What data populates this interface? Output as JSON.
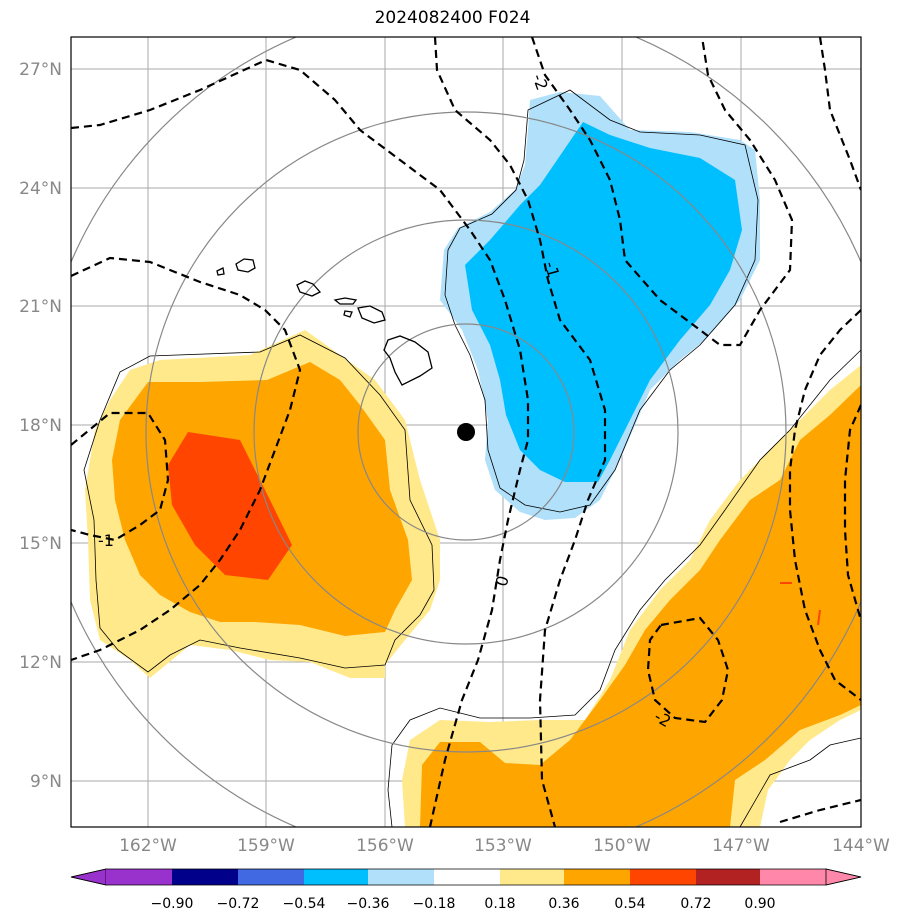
{
  "title": "2024082400 F024",
  "map": {
    "lat_ticks": [
      "27°N",
      "24°N",
      "21°N",
      "18°N",
      "15°N",
      "12°N",
      "9°N"
    ],
    "lon_ticks": [
      "162°W",
      "159°W",
      "156°W",
      "153°W",
      "150°W",
      "147°W",
      "144°W"
    ],
    "contour_labels": [
      "-2",
      "-1",
      "0",
      "-1",
      "-2"
    ],
    "colors": {
      "neg_strong": "#00bfff",
      "neg_weak": "#b0e0fa",
      "pos_weak": "#ffe98a",
      "pos_mid": "#ffa500",
      "pos_strong": "#ff4500"
    }
  },
  "colorbar": {
    "tick_labels": [
      "−0.90",
      "−0.72",
      "−0.54",
      "−0.36",
      "−0.18",
      "0.18",
      "0.36",
      "0.54",
      "0.72",
      "0.90"
    ],
    "colors": [
      "#9932cc",
      "#00008b",
      "#4169e1",
      "#00bfff",
      "#b0e0fa",
      "#ffffff",
      "#ffe98a",
      "#ffa500",
      "#ff4500",
      "#b22222",
      "#ff88aa",
      "#ff88aa"
    ]
  }
}
